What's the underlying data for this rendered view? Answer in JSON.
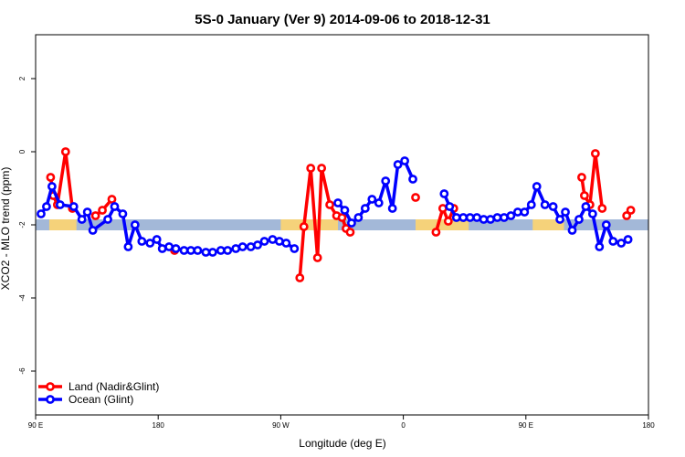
{
  "chart_data": {
    "type": "line",
    "title": "5S-0 January (Ver 9)   2014-09-06 to 2018-12-31",
    "xlabel": "Longitude (deg E)",
    "ylabel": "XCO2 - MLO trend (ppm)",
    "xlim": [
      90,
      540
    ],
    "ylim": [
      -7.2,
      3.2
    ],
    "x_ticks": [
      {
        "value": 90,
        "label": "90 E"
      },
      {
        "value": 180,
        "label": "180"
      },
      {
        "value": 270,
        "label": "90 W"
      },
      {
        "value": 360,
        "label": "0"
      },
      {
        "value": 450,
        "label": "90 E"
      },
      {
        "value": 540,
        "label": "180"
      }
    ],
    "y_ticks": [
      {
        "value": 2,
        "label": "2"
      },
      {
        "value": 0,
        "label": "0"
      },
      {
        "value": -2,
        "label": "-2"
      },
      {
        "value": -4,
        "label": "-4"
      },
      {
        "value": -6,
        "label": "-6"
      }
    ],
    "grid": false,
    "legend_position": "bottom-left",
    "background_band": {
      "ymin": -2.15,
      "ymax": -1.85,
      "ocean_color": "#a3b8d8",
      "land_color": "#f5d27a",
      "land_segments": [
        [
          100,
          120
        ],
        [
          270,
          312
        ],
        [
          369,
          408
        ],
        [
          455,
          478
        ]
      ]
    },
    "series": [
      {
        "name": "Land (Nadir&Glint)",
        "color": "#ff0000",
        "points": [
          [
            101,
            -0.7
          ],
          [
            103,
            -1.2
          ],
          [
            106,
            -1.45
          ],
          [
            112,
            0.0
          ],
          [
            117,
            -1.55
          ],
          [
            134,
            -1.75
          ],
          [
            139,
            -1.6
          ],
          [
            146,
            -1.3
          ],
          [
            192,
            -2.7
          ],
          [
            284,
            -3.45
          ],
          [
            287,
            -2.05
          ],
          [
            292,
            -0.45
          ],
          [
            297,
            -2.9
          ],
          [
            300,
            -0.45
          ],
          [
            306,
            -1.45
          ],
          [
            311,
            -1.75
          ],
          [
            315,
            -1.8
          ],
          [
            318,
            -2.1
          ],
          [
            321,
            -2.2
          ],
          [
            369,
            -1.25
          ],
          [
            384,
            -2.2
          ],
          [
            389,
            -1.55
          ],
          [
            393,
            -1.9
          ],
          [
            397,
            -1.55
          ],
          [
            491,
            -0.7
          ],
          [
            493,
            -1.2
          ],
          [
            497,
            -1.45
          ],
          [
            501,
            -0.05
          ],
          [
            506,
            -1.55
          ],
          [
            524,
            -1.75
          ],
          [
            527,
            -1.6
          ]
        ]
      },
      {
        "name": "Ocean (Glint)",
        "color": "#0000ff",
        "points": [
          [
            94,
            -1.7
          ],
          [
            98,
            -1.5
          ],
          [
            102,
            -0.95
          ],
          [
            108,
            -1.45
          ],
          [
            118,
            -1.5
          ],
          [
            124,
            -1.85
          ],
          [
            128,
            -1.65
          ],
          [
            132,
            -2.15
          ],
          [
            143,
            -1.85
          ],
          [
            148,
            -1.5
          ],
          [
            154,
            -1.7
          ],
          [
            158,
            -2.6
          ],
          [
            163,
            -2.0
          ],
          [
            168,
            -2.45
          ],
          [
            174,
            -2.5
          ],
          [
            179,
            -2.4
          ],
          [
            183,
            -2.65
          ],
          [
            188,
            -2.6
          ],
          [
            193,
            -2.65
          ],
          [
            199,
            -2.7
          ],
          [
            204,
            -2.7
          ],
          [
            209,
            -2.7
          ],
          [
            215,
            -2.75
          ],
          [
            220,
            -2.75
          ],
          [
            226,
            -2.7
          ],
          [
            231,
            -2.7
          ],
          [
            237,
            -2.65
          ],
          [
            242,
            -2.6
          ],
          [
            248,
            -2.6
          ],
          [
            253,
            -2.55
          ],
          [
            258,
            -2.45
          ],
          [
            264,
            -2.4
          ],
          [
            269,
            -2.45
          ],
          [
            274,
            -2.5
          ],
          [
            280,
            -2.65
          ],
          [
            312,
            -1.4
          ],
          [
            317,
            -1.6
          ],
          [
            322,
            -1.95
          ],
          [
            327,
            -1.8
          ],
          [
            332,
            -1.55
          ],
          [
            337,
            -1.3
          ],
          [
            342,
            -1.4
          ],
          [
            347,
            -0.8
          ],
          [
            352,
            -1.55
          ],
          [
            356,
            -0.35
          ],
          [
            361,
            -0.25
          ],
          [
            367,
            -0.75
          ],
          [
            390,
            -1.15
          ],
          [
            394,
            -1.5
          ],
          [
            399,
            -1.8
          ],
          [
            404,
            -1.8
          ],
          [
            409,
            -1.8
          ],
          [
            414,
            -1.8
          ],
          [
            419,
            -1.85
          ],
          [
            424,
            -1.85
          ],
          [
            429,
            -1.8
          ],
          [
            434,
            -1.8
          ],
          [
            439,
            -1.75
          ],
          [
            444,
            -1.65
          ],
          [
            449,
            -1.65
          ],
          [
            454,
            -1.45
          ],
          [
            458,
            -0.95
          ],
          [
            464,
            -1.45
          ],
          [
            470,
            -1.5
          ],
          [
            475,
            -1.85
          ],
          [
            479,
            -1.65
          ],
          [
            484,
            -2.15
          ],
          [
            489,
            -1.85
          ],
          [
            494,
            -1.5
          ],
          [
            499,
            -1.7
          ],
          [
            504,
            -2.6
          ],
          [
            509,
            -2.0
          ],
          [
            514,
            -2.45
          ],
          [
            520,
            -2.5
          ],
          [
            525,
            -2.4
          ]
        ]
      }
    ]
  }
}
